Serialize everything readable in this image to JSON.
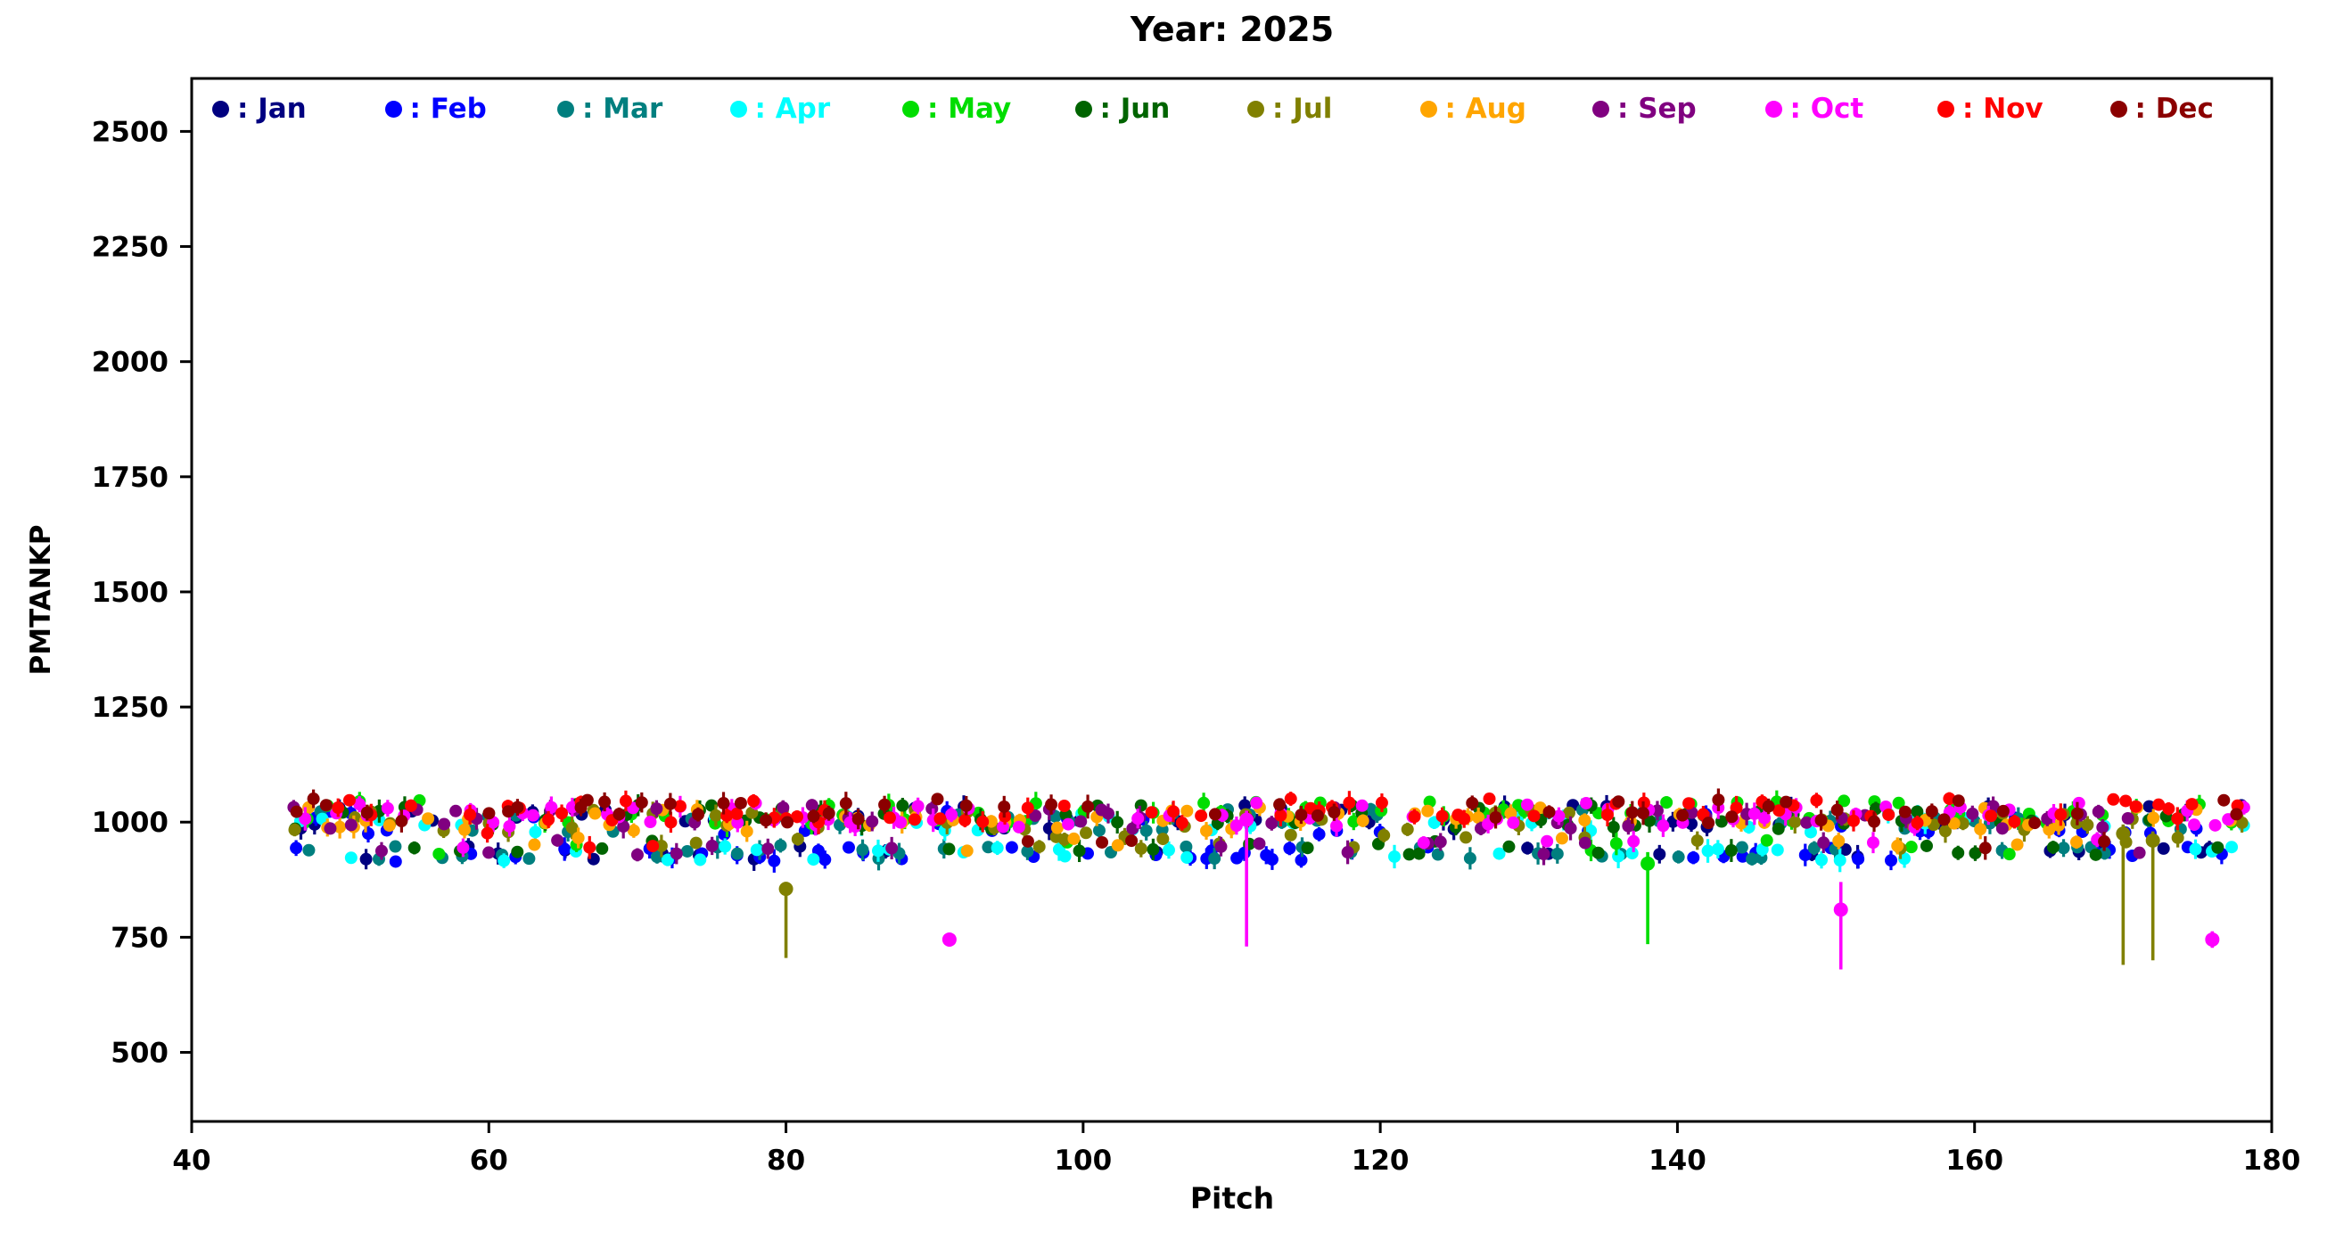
{
  "page": {
    "background_color": "#ffffff",
    "axes_color": "#000000"
  },
  "chart_data": {
    "type": "scatter",
    "title": "Year: 2025",
    "xlabel": "Pitch",
    "ylabel": "PMTANKP",
    "xlim": [
      40,
      180
    ],
    "ylim": [
      350,
      2615
    ],
    "xticks": [
      40,
      60,
      80,
      100,
      120,
      140,
      160,
      180
    ],
    "yticks": [
      500,
      750,
      1000,
      1250,
      1500,
      1750,
      2000,
      2250,
      2500
    ],
    "grid": false,
    "legend_position": "top-inside",
    "marker": "circle-with-errorbar",
    "series": [
      {
        "name": "Jan",
        "label": ": Jan",
        "color": "#000080",
        "y_main": 1010,
        "y_low": 935,
        "low_prob": 0.4
      },
      {
        "name": "Feb",
        "label": ": Feb",
        "color": "#0000ff",
        "y_main": 1000,
        "y_low": 930,
        "low_prob": 0.55
      },
      {
        "name": "Mar",
        "label": ": Mar",
        "color": "#007f7f",
        "y_main": 1005,
        "y_low": 935,
        "low_prob": 0.5
      },
      {
        "name": "Apr",
        "label": ": Apr",
        "color": "#00ffff",
        "y_main": 1000,
        "y_low": 932,
        "low_prob": 0.5
      },
      {
        "name": "May",
        "label": ": May",
        "color": "#00dd00",
        "y_main": 1020,
        "y_low": 945,
        "low_prob": 0.15
      },
      {
        "name": "Jun",
        "label": ": Jun",
        "color": "#006400",
        "y_main": 1012,
        "y_low": 945,
        "low_prob": 0.35
      },
      {
        "name": "Jul",
        "label": ": Jul",
        "color": "#808000",
        "y_main": 1000,
        "y_low": 958,
        "low_prob": 0.3
      },
      {
        "name": "Aug",
        "label": ": Aug",
        "color": "#ffa500",
        "y_main": 1005,
        "y_low": 950,
        "low_prob": 0.15
      },
      {
        "name": "Sep",
        "label": ": Sep",
        "color": "#800080",
        "y_main": 1012,
        "y_low": 945,
        "low_prob": 0.25
      },
      {
        "name": "Oct",
        "label": ": Oct",
        "color": "#ff00ff",
        "y_main": 1015,
        "y_low": 950,
        "low_prob": 0.1
      },
      {
        "name": "Nov",
        "label": ": Nov",
        "color": "#ff0000",
        "y_main": 1025,
        "y_low": 960,
        "low_prob": 0.05
      },
      {
        "name": "Dec",
        "label": ": Dec",
        "color": "#8b0000",
        "y_main": 1025,
        "y_low": 955,
        "low_prob": 0.08
      }
    ],
    "generation": {
      "comment": "dense band of monthly points with small error bars, pitch 47-178, PMTANKP ~900-1055",
      "seed": 20250,
      "x_start": 47,
      "x_end": 178,
      "density": 0.55,
      "main_jitter": 27,
      "low_jitter": 16,
      "err_min": 4,
      "err_max": 26,
      "marker_r": 7
    },
    "outliers": [
      {
        "series": "Jul",
        "x": 80,
        "y": 855,
        "err_minus": 150,
        "err_plus": 15
      },
      {
        "series": "Oct",
        "x": 91,
        "y": 745,
        "err_minus": 12,
        "err_plus": 12
      },
      {
        "series": "Oct",
        "x": 111,
        "y": 1005,
        "err_minus": 275,
        "err_plus": 20
      },
      {
        "series": "May",
        "x": 138,
        "y": 910,
        "err_minus": 175,
        "err_plus": 25
      },
      {
        "series": "Oct",
        "x": 151,
        "y": 810,
        "err_minus": 130,
        "err_plus": 60
      },
      {
        "series": "Jul",
        "x": 170,
        "y": 975,
        "err_minus": 285,
        "err_plus": 20
      },
      {
        "series": "Jul",
        "x": 172,
        "y": 960,
        "err_minus": 260,
        "err_plus": 20
      },
      {
        "series": "Oct",
        "x": 176,
        "y": 745,
        "err_minus": 18,
        "err_plus": 18
      }
    ]
  }
}
